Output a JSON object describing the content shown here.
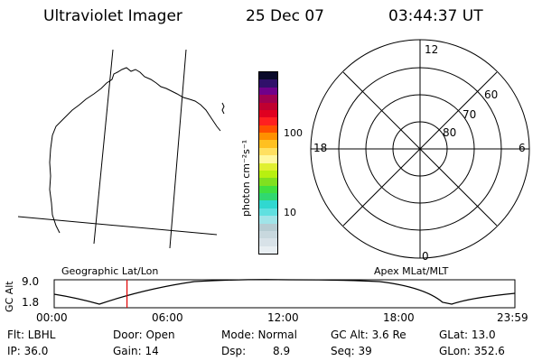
{
  "header": {
    "title": "Ultraviolet Imager",
    "date": "25 Dec 07",
    "time": "03:44:37 UT"
  },
  "colorbar": {
    "unit_label": "photon cm⁻²s⁻¹",
    "tick_100": "100",
    "tick_10": "10",
    "colors": [
      "#e8eef2",
      "#d8e2e8",
      "#c8d8de",
      "#b6ccd2",
      "#a0e4e8",
      "#60e0e0",
      "#30d8d0",
      "#30d870",
      "#40e040",
      "#80e020",
      "#b8f010",
      "#e0f030",
      "#fff8a0",
      "#ffe060",
      "#ffc020",
      "#ff9000",
      "#ff5000",
      "#ff2020",
      "#e00020",
      "#c00030",
      "#a00050",
      "#70008a",
      "#30106a",
      "#0a0a2a"
    ]
  },
  "polar_plot": {
    "label_12": "12",
    "label_6": "6",
    "label_18": "18",
    "label_0": "0",
    "label_60": "60",
    "label_70": "70",
    "label_80": "80"
  },
  "timeline": {
    "ylabel": "GC Alt",
    "y_max": "9.0",
    "y_min": "1.8",
    "left_title": "Geographic Lat/Lon",
    "right_title": "Apex MLat/MLT",
    "ticks": [
      "00:00",
      "06:00",
      "12:00",
      "18:00",
      "23:59"
    ],
    "marker_time_fraction": 0.158
  },
  "status": {
    "flt": "Flt: LBHL",
    "ip": "IP: 36.0",
    "door": "Door: Open",
    "gain": "Gain: 14",
    "mode": "Mode: Normal",
    "dsp_label": "Dsp:",
    "dsp_value": "8.9",
    "gcalt": "GC Alt: 3.6 Re",
    "seq": "Seq: 39",
    "glat": "GLat: 13.0",
    "glon": "GLon: 352.6"
  }
}
